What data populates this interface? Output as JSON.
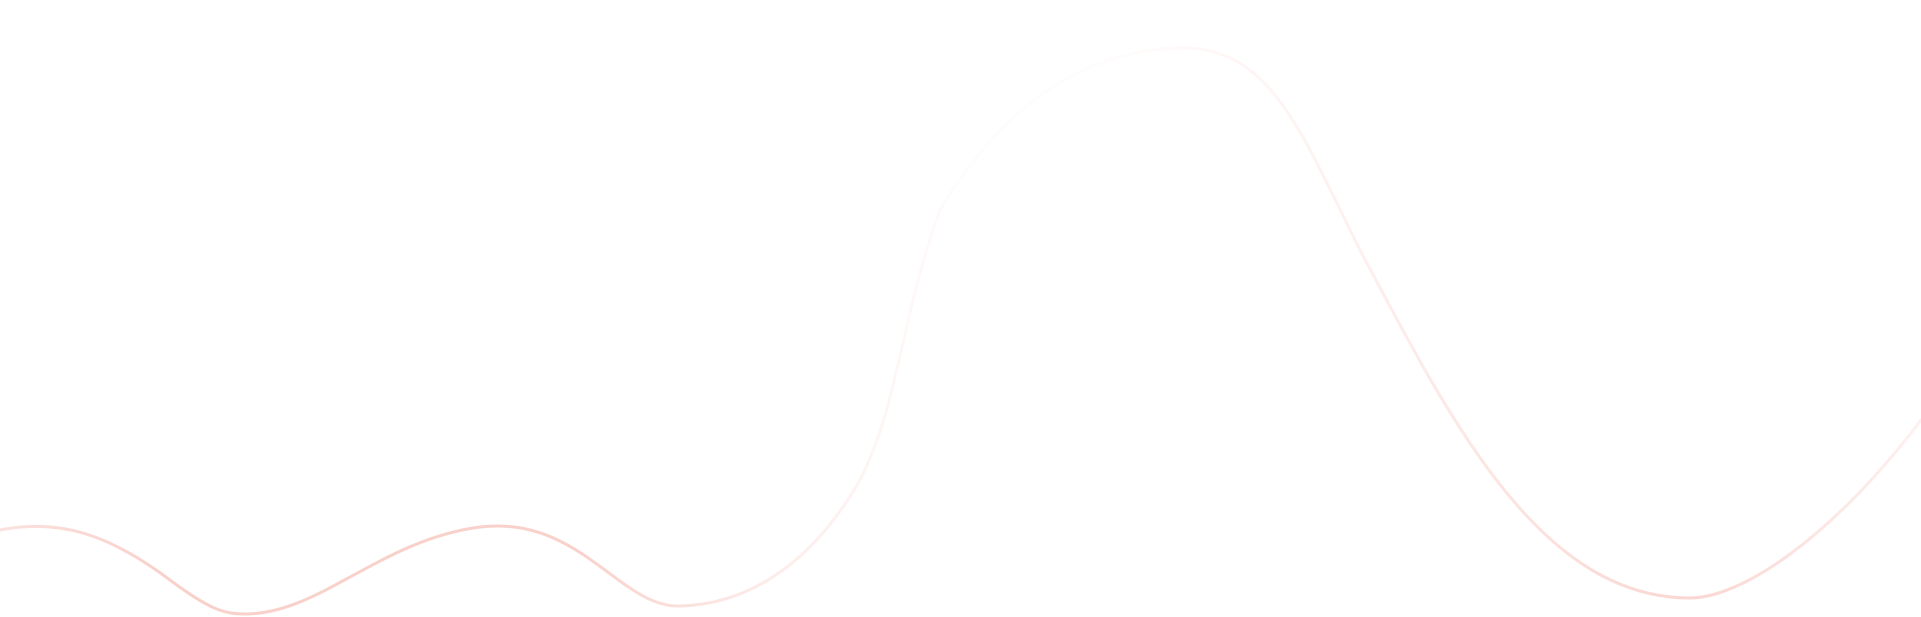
{
  "background_color": "#ffffff",
  "wave": {
    "stroke_color": "#f8c9c2",
    "fade_color": "#ffffff"
  }
}
